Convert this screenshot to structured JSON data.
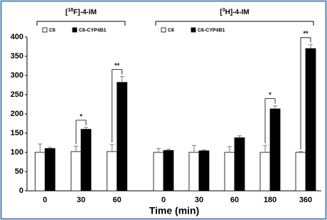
{
  "chart_data": [
    {
      "type": "bar",
      "title": {
        "pre": "[",
        "sup": "18",
        "post": "F]-4-IM"
      },
      "categories": [
        "0",
        "30",
        "60"
      ],
      "series": [
        {
          "name": "C6",
          "color": "#ffffff",
          "values": [
            100,
            102,
            102
          ],
          "errors": [
            22,
            14,
            18
          ]
        },
        {
          "name": "C6-CYP4B1",
          "color": "#000000",
          "values": [
            110,
            160,
            282
          ],
          "errors": [
            3,
            5,
            15
          ]
        }
      ],
      "significance": [
        null,
        "*",
        "**"
      ],
      "ylim": [
        0,
        400
      ],
      "yticks": [
        0,
        50,
        100,
        150,
        200,
        250,
        300,
        350,
        400
      ]
    },
    {
      "type": "bar",
      "title": {
        "pre": "[",
        "sup": "3",
        "post": "H]-4-IM"
      },
      "categories": [
        "0",
        "30",
        "60",
        "180",
        "360"
      ],
      "series": [
        {
          "name": "C6",
          "color": "#ffffff",
          "values": [
            100,
            100,
            100,
            100,
            100
          ],
          "errors": [
            10,
            18,
            15,
            18,
            2
          ]
        },
        {
          "name": "C6-CYP4B1",
          "color": "#000000",
          "values": [
            105,
            104,
            138,
            213,
            370
          ],
          "errors": [
            3,
            2,
            5,
            8,
            10
          ]
        }
      ],
      "significance": [
        null,
        null,
        null,
        "*",
        "**"
      ],
      "ylim": [
        0,
        400
      ]
    }
  ],
  "xlabel": "Time (min)"
}
